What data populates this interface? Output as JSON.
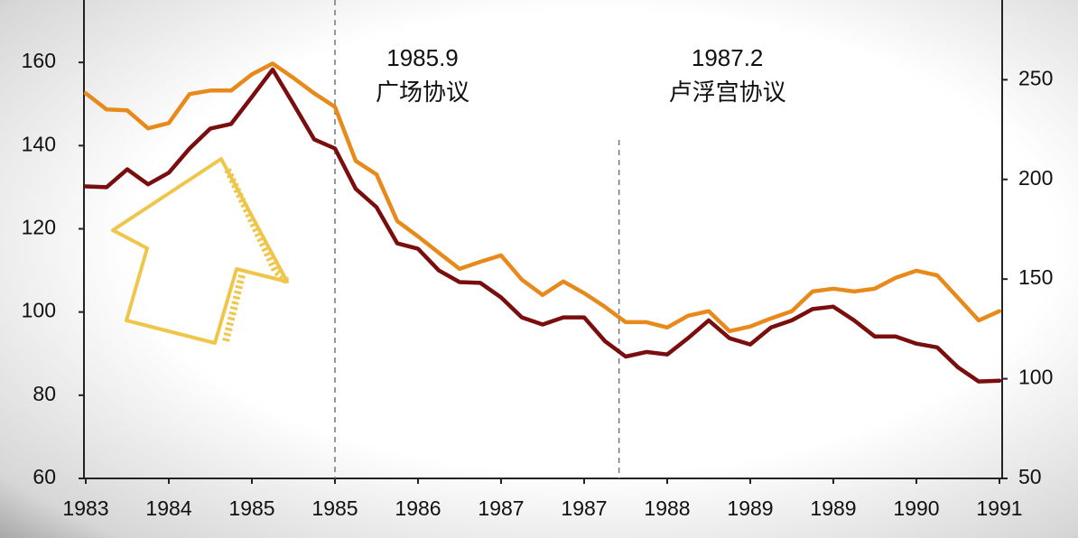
{
  "chart_data": {
    "type": "line",
    "x": [
      0,
      0.25,
      0.5,
      0.75,
      1,
      1.25,
      1.5,
      1.75,
      2,
      2.25,
      2.5,
      2.75,
      3,
      3.25,
      3.5,
      3.75,
      4,
      4.25,
      4.5,
      4.75,
      5,
      5.25,
      5.5,
      5.75,
      6,
      6.25,
      6.5,
      6.75,
      7,
      7.25,
      7.5,
      7.75,
      8,
      8.25,
      8.5,
      8.75,
      9,
      9.25,
      9.5,
      9.75,
      10,
      10.25,
      10.5,
      10.75,
      11
    ],
    "xlim": [
      0,
      11.05
    ],
    "xticks": [
      {
        "value": 0,
        "label": "1983"
      },
      {
        "value": 1,
        "label": "1984"
      },
      {
        "value": 2,
        "label": "1985"
      },
      {
        "value": 3,
        "label": "1985"
      },
      {
        "value": 4,
        "label": "1986"
      },
      {
        "value": 5,
        "label": "1987"
      },
      {
        "value": 6,
        "label": "1987"
      },
      {
        "value": 7,
        "label": "1988"
      },
      {
        "value": 8,
        "label": "1989"
      },
      {
        "value": 9,
        "label": "1989"
      },
      {
        "value": 10,
        "label": "1990"
      },
      {
        "value": 11,
        "label": "1991"
      }
    ],
    "ylim": [
      60,
      175
    ],
    "yticks": [
      60,
      80,
      100,
      120,
      140,
      160
    ],
    "y2lim": [
      50,
      290
    ],
    "y2ticks": [
      50,
      100,
      150,
      200,
      250
    ],
    "series": [
      {
        "color": "#7a0d0d",
        "values": [
          130.2,
          130,
          134.3,
          130.7,
          133.5,
          139.3,
          144.1,
          145.2,
          151.7,
          158.3,
          150,
          141.5,
          139.3,
          129.6,
          125.2,
          116.5,
          115.2,
          110,
          107.2,
          107,
          103.5,
          98.7,
          97,
          98.7,
          98.7,
          93,
          89.3,
          90.4,
          89.8,
          93.7,
          98,
          93.7,
          92.2,
          96.3,
          98,
          100.7,
          101.3,
          98,
          94.1,
          94.1,
          92.4,
          91.5,
          86.7,
          83.3,
          83.5
        ]
      },
      {
        "color": "#e8891c",
        "axis": "y2",
        "values": [
          243.2,
          235.1,
          234.6,
          225.6,
          228.3,
          242.8,
          244.6,
          244.6,
          252.7,
          258.1,
          250.9,
          243.2,
          236.4,
          209.3,
          202.5,
          179.1,
          171.4,
          163.2,
          155.1,
          158.7,
          161.9,
          149.7,
          142,
          148.8,
          142.9,
          136.1,
          128.4,
          128.4,
          125.7,
          131.6,
          133.9,
          123.9,
          126.2,
          130.3,
          133.9,
          143.8,
          145.2,
          143.8,
          145.2,
          150.6,
          154.2,
          151.9,
          140.6,
          129.3,
          133.9
        ]
      }
    ],
    "annotations": [
      {
        "x": 3,
        "date": "1985.9",
        "text": "广场协议"
      },
      {
        "x": 6.42,
        "date": "1987.2",
        "text": "卢浮宫协议"
      }
    ]
  }
}
